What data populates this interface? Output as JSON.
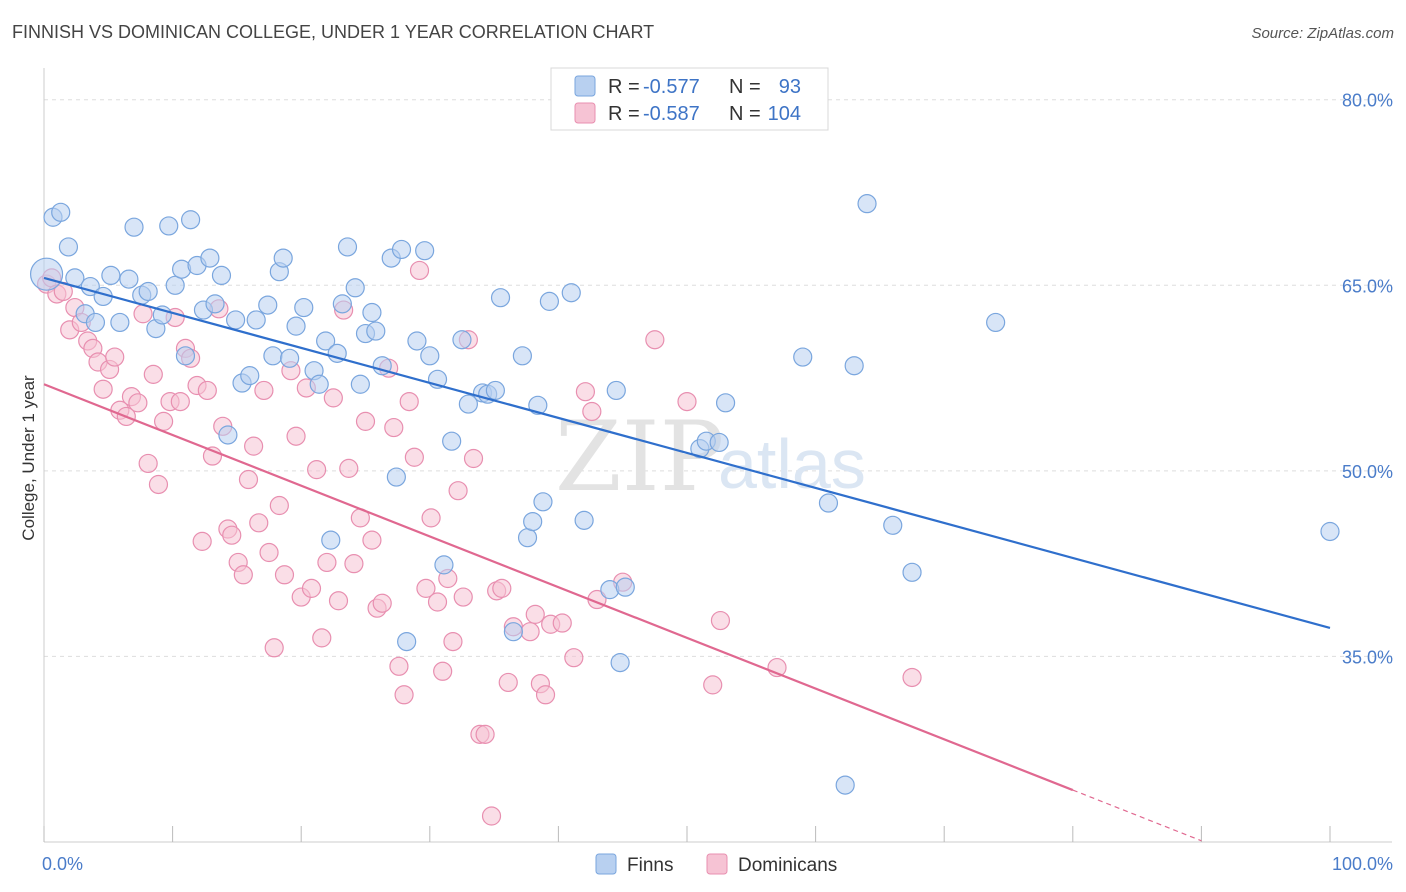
{
  "header": {
    "title": "FINNISH VS DOMINICAN COLLEGE, UNDER 1 YEAR CORRELATION CHART",
    "source": "Source: ZipAtlas.com"
  },
  "watermark": {
    "zip": "ZIP",
    "atlas": "atlas"
  },
  "legend": {
    "rows": [
      {
        "r_label": "R =",
        "r_value": "-0.577",
        "n_label": "N =",
        "n_value": "93"
      },
      {
        "r_label": "R =",
        "r_value": "-0.587",
        "n_label": "N =",
        "n_value": "104"
      }
    ]
  },
  "bottom_legend": {
    "finns": "Finns",
    "dominicans": "Dominicans"
  },
  "colors": {
    "finns_fill": "#b8d0f0",
    "finns_stroke": "#7aa6de",
    "finns_line": "#2f6fcc",
    "dom_fill": "#f6c3d4",
    "dom_stroke": "#e88fb0",
    "dom_line": "#e06890"
  },
  "chart_data": {
    "type": "scatter",
    "title": "FINNISH VS DOMINICAN COLLEGE, UNDER 1 YEAR CORRELATION CHART",
    "xlabel": "",
    "ylabel": "College, Under 1 year",
    "xlim": [
      0,
      100
    ],
    "ylim": [
      20,
      82
    ],
    "x_ticks": [
      "0.0%",
      "100.0%"
    ],
    "y_ticks": [
      {
        "value": 35,
        "label": "35.0%"
      },
      {
        "value": 50,
        "label": "50.0%"
      },
      {
        "value": 65,
        "label": "65.0%"
      },
      {
        "value": 80,
        "label": "80.0%"
      }
    ],
    "grid": true,
    "legend_position": "top-center",
    "series": [
      {
        "name": "Finns",
        "trend": {
          "x": [
            0,
            100
          ],
          "y": [
            65.6,
            37.3
          ]
        },
        "points": [
          [
            0.2,
            65.9
          ],
          [
            0.7,
            70.5
          ],
          [
            1.3,
            70.9
          ],
          [
            1.9,
            68.1
          ],
          [
            2.4,
            65.6
          ],
          [
            3.2,
            62.7
          ],
          [
            3.6,
            64.9
          ],
          [
            4.0,
            62.0
          ],
          [
            4.6,
            64.1
          ],
          [
            5.2,
            65.8
          ],
          [
            5.9,
            62.0
          ],
          [
            6.6,
            65.5
          ],
          [
            7.0,
            69.7
          ],
          [
            7.6,
            64.2
          ],
          [
            8.1,
            64.5
          ],
          [
            8.7,
            61.5
          ],
          [
            9.2,
            62.6
          ],
          [
            9.7,
            69.8
          ],
          [
            10.2,
            65.0
          ],
          [
            10.7,
            66.3
          ],
          [
            11.0,
            59.3
          ],
          [
            11.4,
            70.3
          ],
          [
            11.9,
            66.6
          ],
          [
            12.4,
            63.0
          ],
          [
            12.9,
            67.2
          ],
          [
            13.3,
            63.5
          ],
          [
            13.8,
            65.8
          ],
          [
            14.3,
            52.9
          ],
          [
            14.9,
            62.2
          ],
          [
            15.4,
            57.1
          ],
          [
            16.0,
            57.7
          ],
          [
            16.5,
            62.2
          ],
          [
            17.4,
            63.4
          ],
          [
            17.8,
            59.3
          ],
          [
            18.3,
            66.1
          ],
          [
            18.6,
            67.2
          ],
          [
            19.1,
            59.1
          ],
          [
            19.6,
            61.7
          ],
          [
            20.2,
            63.2
          ],
          [
            21.0,
            58.1
          ],
          [
            21.4,
            57.0
          ],
          [
            21.9,
            60.5
          ],
          [
            22.3,
            44.4
          ],
          [
            22.8,
            59.5
          ],
          [
            23.2,
            63.5
          ],
          [
            23.6,
            68.1
          ],
          [
            24.2,
            64.8
          ],
          [
            24.6,
            57.0
          ],
          [
            25.0,
            61.1
          ],
          [
            25.5,
            62.8
          ],
          [
            25.8,
            61.3
          ],
          [
            26.3,
            58.5
          ],
          [
            27.0,
            67.2
          ],
          [
            27.4,
            49.5
          ],
          [
            27.8,
            67.9
          ],
          [
            28.2,
            36.2
          ],
          [
            29.0,
            60.5
          ],
          [
            29.6,
            67.8
          ],
          [
            30.0,
            59.3
          ],
          [
            30.6,
            57.4
          ],
          [
            31.1,
            42.4
          ],
          [
            31.7,
            52.4
          ],
          [
            32.5,
            60.6
          ],
          [
            33.0,
            55.4
          ],
          [
            34.1,
            56.3
          ],
          [
            34.5,
            56.2
          ],
          [
            35.1,
            56.5
          ],
          [
            35.5,
            64.0
          ],
          [
            36.5,
            37.0
          ],
          [
            37.2,
            59.3
          ],
          [
            37.6,
            44.6
          ],
          [
            38.0,
            45.9
          ],
          [
            38.4,
            55.3
          ],
          [
            38.8,
            47.5
          ],
          [
            39.3,
            63.7
          ],
          [
            41.0,
            64.4
          ],
          [
            42.0,
            46.0
          ],
          [
            44.0,
            40.4
          ],
          [
            44.5,
            56.5
          ],
          [
            44.8,
            34.5
          ],
          [
            45.2,
            40.6
          ],
          [
            51.0,
            51.8
          ],
          [
            51.5,
            52.4
          ],
          [
            52.5,
            52.3
          ],
          [
            53.0,
            55.5
          ],
          [
            59.0,
            59.2
          ],
          [
            61.0,
            47.4
          ],
          [
            62.3,
            24.6
          ],
          [
            63.0,
            58.5
          ],
          [
            64.0,
            71.6
          ],
          [
            66.0,
            45.6
          ],
          [
            67.5,
            41.8
          ],
          [
            74.0,
            62.0
          ],
          [
            100.0,
            45.1
          ]
        ]
      },
      {
        "name": "Dominicans",
        "trend": {
          "x": [
            0,
            80,
            90
          ],
          "y": [
            57.0,
            24.2,
            20.1
          ]
        },
        "points": [
          [
            0.2,
            65.1
          ],
          [
            0.6,
            65.6
          ],
          [
            1.0,
            64.3
          ],
          [
            1.5,
            64.5
          ],
          [
            2.0,
            61.4
          ],
          [
            2.4,
            63.2
          ],
          [
            2.9,
            62.0
          ],
          [
            3.4,
            60.5
          ],
          [
            3.8,
            59.9
          ],
          [
            4.2,
            58.8
          ],
          [
            4.6,
            56.6
          ],
          [
            5.1,
            58.2
          ],
          [
            5.5,
            59.2
          ],
          [
            5.9,
            54.9
          ],
          [
            6.4,
            54.4
          ],
          [
            6.8,
            56.0
          ],
          [
            7.3,
            55.5
          ],
          [
            7.7,
            62.7
          ],
          [
            8.1,
            50.6
          ],
          [
            8.5,
            57.8
          ],
          [
            8.9,
            48.9
          ],
          [
            9.3,
            54.0
          ],
          [
            9.8,
            55.6
          ],
          [
            10.2,
            62.4
          ],
          [
            10.6,
            55.6
          ],
          [
            11.0,
            59.9
          ],
          [
            11.4,
            59.1
          ],
          [
            11.9,
            56.9
          ],
          [
            12.3,
            44.3
          ],
          [
            12.7,
            56.5
          ],
          [
            13.1,
            51.2
          ],
          [
            13.6,
            63.1
          ],
          [
            13.9,
            53.6
          ],
          [
            14.3,
            45.3
          ],
          [
            14.6,
            44.8
          ],
          [
            15.1,
            42.6
          ],
          [
            15.5,
            41.6
          ],
          [
            15.9,
            49.3
          ],
          [
            16.3,
            52.0
          ],
          [
            16.7,
            45.8
          ],
          [
            17.1,
            56.5
          ],
          [
            17.5,
            43.4
          ],
          [
            17.9,
            35.7
          ],
          [
            18.3,
            47.2
          ],
          [
            18.7,
            41.6
          ],
          [
            19.2,
            58.1
          ],
          [
            19.6,
            52.8
          ],
          [
            20.0,
            39.8
          ],
          [
            20.4,
            56.7
          ],
          [
            20.8,
            40.5
          ],
          [
            21.2,
            50.1
          ],
          [
            21.6,
            36.5
          ],
          [
            22.0,
            42.6
          ],
          [
            22.5,
            55.9
          ],
          [
            22.9,
            39.5
          ],
          [
            23.3,
            63.0
          ],
          [
            23.7,
            50.2
          ],
          [
            24.1,
            42.5
          ],
          [
            24.6,
            46.2
          ],
          [
            25.0,
            54.0
          ],
          [
            25.5,
            44.4
          ],
          [
            25.9,
            38.9
          ],
          [
            26.3,
            39.3
          ],
          [
            26.8,
            58.3
          ],
          [
            27.2,
            53.5
          ],
          [
            27.6,
            34.2
          ],
          [
            28.0,
            31.9
          ],
          [
            28.4,
            55.6
          ],
          [
            28.8,
            51.1
          ],
          [
            29.2,
            66.2
          ],
          [
            29.7,
            40.5
          ],
          [
            30.1,
            46.2
          ],
          [
            30.6,
            39.4
          ],
          [
            31.0,
            33.8
          ],
          [
            31.4,
            41.3
          ],
          [
            31.8,
            36.2
          ],
          [
            32.2,
            48.4
          ],
          [
            32.6,
            39.8
          ],
          [
            33.0,
            60.6
          ],
          [
            33.4,
            51.0
          ],
          [
            33.9,
            28.7
          ],
          [
            34.3,
            28.7
          ],
          [
            34.8,
            22.1
          ],
          [
            35.2,
            40.3
          ],
          [
            35.6,
            40.5
          ],
          [
            36.1,
            32.9
          ],
          [
            36.5,
            37.4
          ],
          [
            37.8,
            37.0
          ],
          [
            38.2,
            38.4
          ],
          [
            38.6,
            32.8
          ],
          [
            39.0,
            31.9
          ],
          [
            39.4,
            37.6
          ],
          [
            40.3,
            37.7
          ],
          [
            41.2,
            34.9
          ],
          [
            42.1,
            56.4
          ],
          [
            42.6,
            54.8
          ],
          [
            43.0,
            39.6
          ],
          [
            45.0,
            41.0
          ],
          [
            47.5,
            60.6
          ],
          [
            50.0,
            55.6
          ],
          [
            52.0,
            32.7
          ],
          [
            52.6,
            37.9
          ],
          [
            57.0,
            34.1
          ],
          [
            67.5,
            33.3
          ]
        ]
      }
    ]
  }
}
